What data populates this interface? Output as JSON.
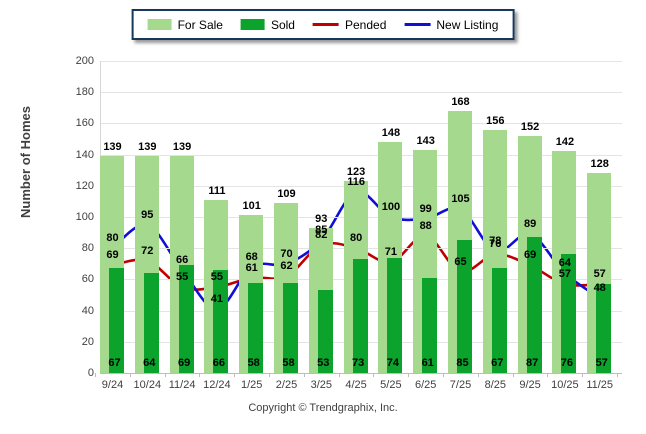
{
  "legend": {
    "for_sale": "For Sale",
    "sold": "Sold",
    "pended": "Pended",
    "new_listing": "New Listing"
  },
  "footer_text": "Copyright © Trendgraphix, Inc.",
  "chart_data": {
    "type": "bar",
    "title": "",
    "xlabel": "",
    "ylabel": "Number of Homes",
    "ylim": [
      0,
      200
    ],
    "y_ticks": [
      0,
      20,
      40,
      60,
      80,
      100,
      120,
      140,
      160,
      180,
      200
    ],
    "grid": true,
    "legend_position": "top-center",
    "categories": [
      "9/24",
      "10/24",
      "11/24",
      "12/24",
      "1/25",
      "2/25",
      "3/25",
      "4/25",
      "5/25",
      "6/25",
      "7/25",
      "8/25",
      "9/25",
      "10/25",
      "11/25"
    ],
    "series": [
      {
        "name": "For Sale",
        "type": "bar",
        "color": "#a5d98e",
        "values": [
          139,
          139,
          139,
          111,
          101,
          109,
          93,
          123,
          148,
          143,
          168,
          156,
          152,
          142,
          128
        ]
      },
      {
        "name": "Sold",
        "type": "bar",
        "color": "#0ba32b",
        "values": [
          67,
          64,
          69,
          66,
          58,
          58,
          53,
          73,
          74,
          61,
          85,
          67,
          87,
          76,
          57
        ]
      },
      {
        "name": "Pended",
        "type": "line",
        "color": "#c00000",
        "values": [
          69,
          72,
          55,
          55,
          61,
          62,
          82,
          80,
          71,
          88,
          65,
          76,
          69,
          57,
          57
        ]
      },
      {
        "name": "New Listing",
        "type": "line",
        "color": "#0f0fd6",
        "values": [
          80,
          95,
          66,
          41,
          68,
          70,
          85,
          116,
          100,
          99,
          105,
          78,
          89,
          64,
          48
        ]
      }
    ]
  }
}
